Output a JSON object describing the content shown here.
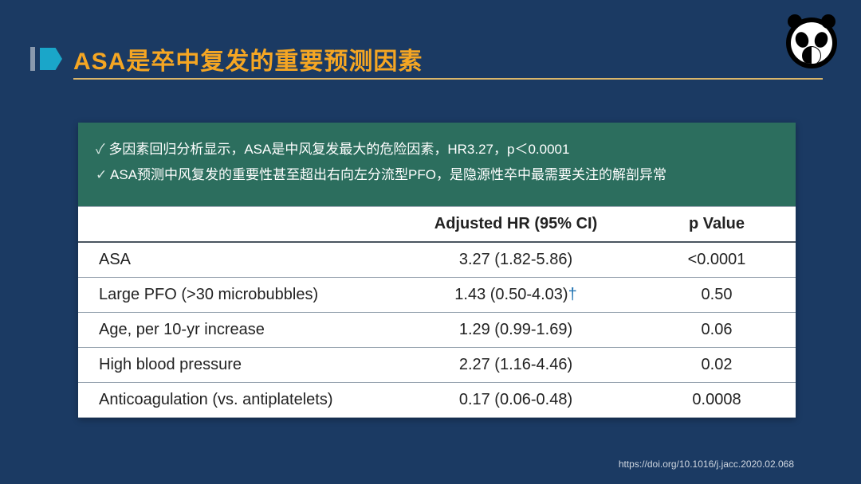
{
  "colors": {
    "page_bg": "#1b3a63",
    "title_text": "#f5a623",
    "title_underline": "#f0c36a",
    "bullet_accent": "#1aa6c9",
    "summary_bg": "#2c6e5e",
    "summary_text": "#ffffff",
    "table_bg": "#ffffff",
    "table_text": "#222222",
    "table_row_border": "#9aa6b2",
    "table_header_border": "#4a5560",
    "dagger_color": "#1a6fb0",
    "citation_text": "#d0d7e0"
  },
  "title": "ASA是卒中复发的重要预测因素",
  "summary": {
    "line1": "多因素回归分析显示，ASA是中风复发最大的危险因素，HR3.27，p＜0.0001",
    "line2": "ASA预测中风复发的重要性甚至超出右向左分流型PFO，是隐源性卒中最需要关注的解剖异常"
  },
  "table": {
    "type": "table",
    "columns": [
      "",
      "Adjusted HR (95% CI)",
      "p Value"
    ],
    "col_align": [
      "left",
      "center",
      "center"
    ],
    "col_widths_pct": [
      44,
      34,
      22
    ],
    "header_fontsize": 20,
    "body_fontsize": 20,
    "rows": [
      {
        "label": "ASA",
        "hr": "3.27 (1.82-5.86)",
        "hr_dagger": false,
        "p": "<0.0001"
      },
      {
        "label": "Large PFO (>30 microbubbles)",
        "hr": "1.43 (0.50-4.03)",
        "hr_dagger": true,
        "p": "0.50"
      },
      {
        "label": "Age, per 10-yr increase",
        "hr": "1.29 (0.99-1.69)",
        "hr_dagger": false,
        "p": "0.06"
      },
      {
        "label": "High blood pressure",
        "hr": "2.27 (1.16-4.46)",
        "hr_dagger": false,
        "p": "0.02"
      },
      {
        "label": "Anticoagulation (vs. antiplatelets)",
        "hr": "0.17 (0.06-0.48)",
        "hr_dagger": false,
        "p": "0.0008"
      }
    ]
  },
  "citation": "https://doi.org/10.1016/j.jacc.2020.02.068"
}
